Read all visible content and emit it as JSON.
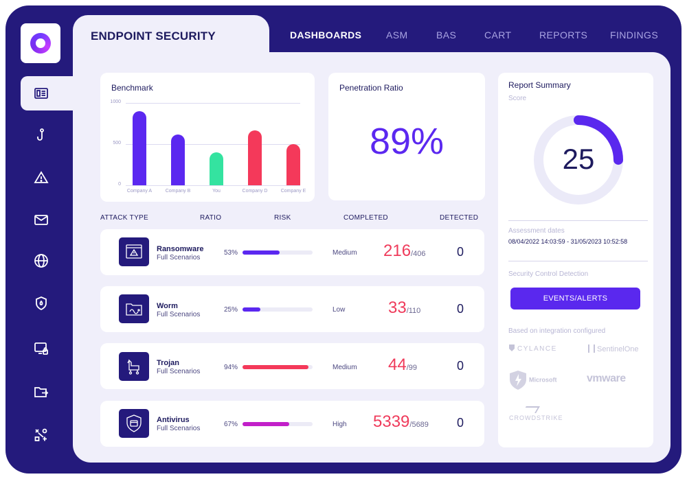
{
  "app": {
    "title": "ENDPOINT SECURITY"
  },
  "nav": {
    "items": [
      {
        "label": "DASHBOARDS",
        "active": true
      },
      {
        "label": "ASM",
        "active": false
      },
      {
        "label": "BAS",
        "active": false
      },
      {
        "label": "CART",
        "active": false
      },
      {
        "label": "REPORTS",
        "active": false
      },
      {
        "label": "FINDINGS",
        "active": false
      }
    ]
  },
  "sidebar": {
    "icons": [
      "dashboard-icon",
      "hook-icon",
      "warning-icon",
      "mail-icon",
      "globe-icon",
      "shield-icon",
      "device-lock-icon",
      "folder-export-icon",
      "network-icon"
    ],
    "active_index": 0
  },
  "benchmark": {
    "title": "Benchmark",
    "chart_data": {
      "type": "bar",
      "categories": [
        "Company A",
        "Company B",
        "You",
        "Company D",
        "Company E"
      ],
      "values": [
        900,
        620,
        400,
        670,
        500
      ],
      "colors": [
        "#5b28f0",
        "#5b28f0",
        "#34e3a0",
        "#f4395a",
        "#f4395a"
      ],
      "ylim": [
        0,
        1000
      ],
      "yticks": [
        "1000",
        "500",
        "0"
      ],
      "grid": true
    }
  },
  "penetration": {
    "title": "Penetration Ratio",
    "value": "89%"
  },
  "table": {
    "headers": {
      "attack_type": "ATTACK TYPE",
      "ratio": "RATIO",
      "risk": "RISK",
      "completed": "COMPLETED",
      "detected": "DETECTED"
    },
    "rows": [
      {
        "name": "Ransomware",
        "sub": "Full Scenarios",
        "ratio": "53%",
        "ratio_value": 0.53,
        "bar_color": "#5b28f0",
        "risk": "Medium",
        "completed": "216",
        "total": "/406",
        "detected": "0",
        "icon": "ransomware-window-icon"
      },
      {
        "name": "Worm",
        "sub": "Full Scenarios",
        "ratio": "25%",
        "ratio_value": 0.25,
        "bar_color": "#5b28f0",
        "risk": "Low",
        "completed": "33",
        "total": "/110",
        "detected": "0",
        "icon": "worm-folder-icon"
      },
      {
        "name": "Trojan",
        "sub": "Full Scenarios",
        "ratio": "94%",
        "ratio_value": 0.94,
        "bar_color": "#f4395a",
        "risk": "Medium",
        "completed": "44",
        "total": "/99",
        "detected": "0",
        "icon": "trojan-horse-icon"
      },
      {
        "name": "Antivirus",
        "sub": "Full Scenarios",
        "ratio": "67%",
        "ratio_value": 0.67,
        "bar_color": "#c21fc9",
        "risk": "High",
        "completed": "5339",
        "total": "/5689",
        "detected": "0",
        "icon": "antivirus-shield-icon"
      }
    ]
  },
  "report": {
    "title": "Report Summary",
    "score_label": "Score",
    "score": "25",
    "score_value": 25,
    "score_max": 100,
    "assessment_label": "Assessment dates",
    "assessment_dates": "08/04/2022 14:03:59 - 31/05/2023 10:52:58",
    "security_label": "Security Control Detection",
    "events_button": "EVENTS/ALERTS",
    "integration_label": "Based on integration configured",
    "integrations": [
      "CYLANCE",
      "SentinelOne",
      "Microsoft",
      "vmware",
      "CROWDSTRIKE"
    ]
  }
}
